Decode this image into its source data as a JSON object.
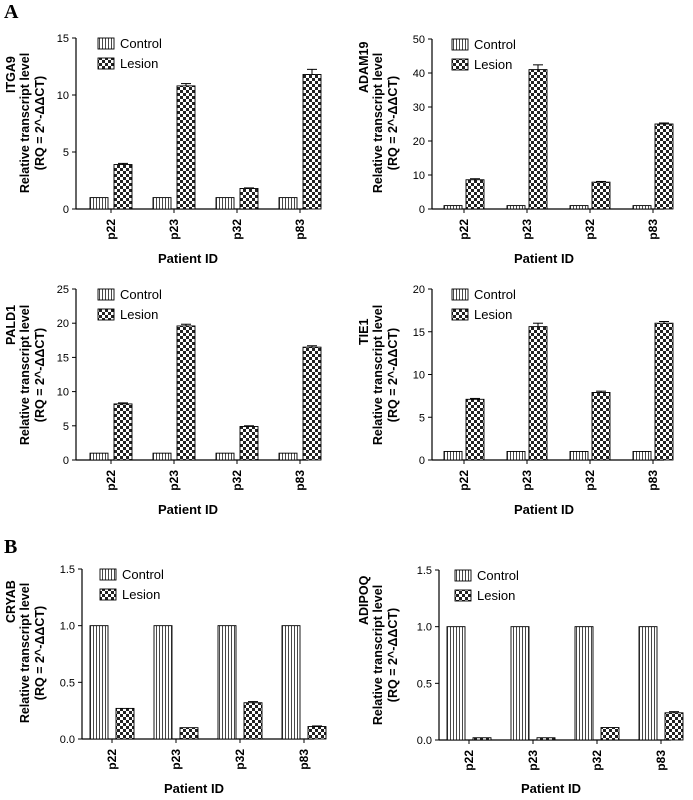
{
  "figure": {
    "panel_labels": [
      "A",
      "B"
    ],
    "legend": [
      "Control",
      "Lesion"
    ]
  },
  "chart_data": [
    {
      "type": "bar",
      "gene": "ITGA9",
      "ylabel_line1": "Relative transcript level",
      "ylabel_line2": "(RQ = 2^-ΔΔCT)",
      "xlabel": "Patient ID",
      "categories": [
        "p22",
        "p23",
        "p32",
        "p83"
      ],
      "series": [
        {
          "name": "Control",
          "values": [
            1,
            1,
            1,
            1
          ],
          "errors": [
            0,
            0,
            0,
            0
          ]
        },
        {
          "name": "Lesion",
          "values": [
            3.9,
            10.8,
            1.8,
            11.8
          ],
          "errors": [
            0.1,
            0.2,
            0.05,
            0.45
          ]
        }
      ],
      "ylim": [
        0,
        15
      ],
      "yticks": [
        0,
        5,
        10,
        15
      ],
      "ytick_labels": [
        "0",
        "5",
        "10",
        "15"
      ]
    },
    {
      "type": "bar",
      "gene": "ADAM19",
      "ylabel_line1": "Relative transcript level",
      "ylabel_line2": "(RQ = 2^-ΔΔCT)",
      "xlabel": "Patient ID",
      "categories": [
        "p22",
        "p23",
        "p32",
        "p83"
      ],
      "series": [
        {
          "name": "Control",
          "values": [
            1,
            1,
            1,
            1
          ],
          "errors": [
            0,
            0,
            0,
            0
          ]
        },
        {
          "name": "Lesion",
          "values": [
            8.6,
            41,
            7.9,
            25
          ],
          "errors": [
            0.3,
            1.4,
            0.2,
            0.3
          ]
        }
      ],
      "ylim": [
        0,
        50
      ],
      "yticks": [
        0,
        10,
        20,
        30,
        40,
        50
      ],
      "ytick_labels": [
        "0",
        "10",
        "20",
        "30",
        "40",
        "50"
      ]
    },
    {
      "type": "bar",
      "gene": "PALD1",
      "ylabel_line1": "Relative transcript level",
      "ylabel_line2": "(RQ = 2^-ΔΔCT)",
      "xlabel": "Patient ID",
      "categories": [
        "p22",
        "p23",
        "p32",
        "p83"
      ],
      "series": [
        {
          "name": "Control",
          "values": [
            1,
            1,
            1,
            1
          ],
          "errors": [
            0,
            0,
            0,
            0
          ]
        },
        {
          "name": "Lesion",
          "values": [
            8.2,
            19.6,
            4.9,
            16.5
          ],
          "errors": [
            0.15,
            0.25,
            0.1,
            0.2
          ]
        }
      ],
      "ylim": [
        0,
        25
      ],
      "yticks": [
        0,
        5,
        10,
        15,
        20,
        25
      ],
      "ytick_labels": [
        "0",
        "5",
        "10",
        "15",
        "20",
        "25"
      ]
    },
    {
      "type": "bar",
      "gene": "TIE1",
      "ylabel_line1": "Relative transcript level",
      "ylabel_line2": "(RQ = 2^-ΔΔCT)",
      "xlabel": "Patient ID",
      "categories": [
        "p22",
        "p23",
        "p32",
        "p83"
      ],
      "series": [
        {
          "name": "Control",
          "values": [
            1,
            1,
            1,
            1
          ],
          "errors": [
            0,
            0,
            0,
            0
          ]
        },
        {
          "name": "Lesion",
          "values": [
            7.1,
            15.6,
            7.9,
            16
          ],
          "errors": [
            0.1,
            0.4,
            0.15,
            0.2
          ]
        }
      ],
      "ylim": [
        0,
        20
      ],
      "yticks": [
        0,
        5,
        10,
        15,
        20
      ],
      "ytick_labels": [
        "0",
        "5",
        "10",
        "15",
        "20"
      ]
    },
    {
      "type": "bar",
      "gene": "CRYAB",
      "ylabel_line1": "Relative transcript level",
      "ylabel_line2": "(RQ = 2^-ΔΔCT)",
      "xlabel": "Patient ID",
      "categories": [
        "p22",
        "p23",
        "p32",
        "p83"
      ],
      "series": [
        {
          "name": "Control",
          "values": [
            1,
            1,
            1,
            1
          ],
          "errors": [
            0,
            0,
            0,
            0
          ]
        },
        {
          "name": "Lesion",
          "values": [
            0.27,
            0.1,
            0.32,
            0.11
          ],
          "errors": [
            0,
            0,
            0.01,
            0.005
          ]
        }
      ],
      "ylim": [
        0,
        1.5
      ],
      "yticks": [
        0,
        0.5,
        1,
        1.5
      ],
      "ytick_labels": [
        "0.0",
        "0.5",
        "1.0",
        "1.5"
      ]
    },
    {
      "type": "bar",
      "gene": "ADIPOQ",
      "ylabel_line1": "Relative transcript level",
      "ylabel_line2": "(RQ = 2^-ΔΔCT)",
      "xlabel": "Patient ID",
      "categories": [
        "p22",
        "p23",
        "p32",
        "p83"
      ],
      "series": [
        {
          "name": "Control",
          "values": [
            1,
            1,
            1,
            1
          ],
          "errors": [
            0,
            0,
            0,
            0
          ]
        },
        {
          "name": "Lesion",
          "values": [
            0.02,
            0.02,
            0.11,
            0.24
          ],
          "errors": [
            0,
            0,
            0,
            0.01
          ]
        }
      ],
      "ylim": [
        0,
        1.5
      ],
      "yticks": [
        0,
        0.5,
        1,
        1.5
      ],
      "ytick_labels": [
        "0.0",
        "0.5",
        "1.0",
        "1.5"
      ]
    }
  ]
}
